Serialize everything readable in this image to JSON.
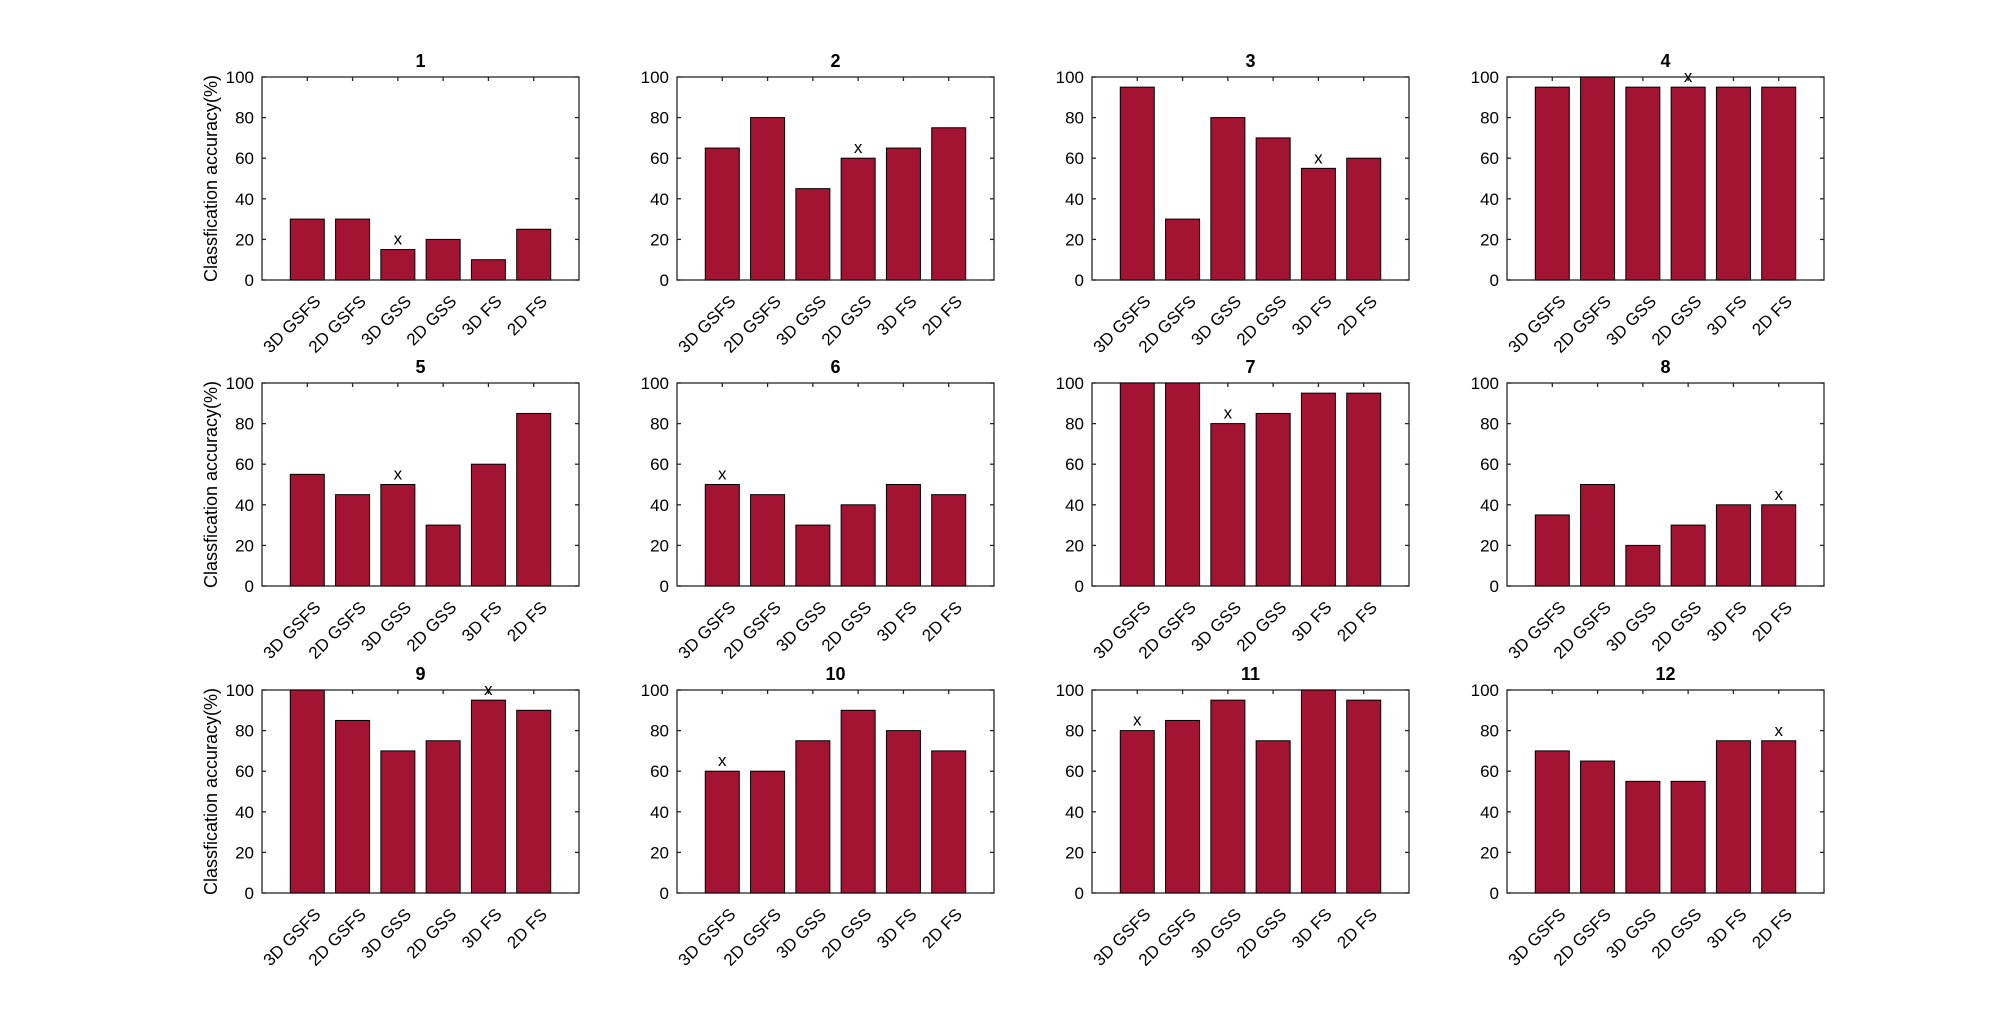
{
  "chart_data": [
    {
      "type": "bar",
      "title": "1",
      "ylabel": "Classfication accuracy(%)",
      "categories": [
        "3D GSFS",
        "2D GSFS",
        "3D GSS",
        "2D GSS",
        "3D FS",
        "2D FS"
      ],
      "values": [
        30,
        30,
        15,
        20,
        10,
        25
      ],
      "marker_label": "x",
      "marker_index": 2,
      "ylim": [
        0,
        100
      ],
      "yticks": [
        0,
        20,
        40,
        60,
        80,
        100
      ]
    },
    {
      "type": "bar",
      "title": "2",
      "ylabel": "",
      "categories": [
        "3D GSFS",
        "2D GSFS",
        "3D GSS",
        "2D GSS",
        "3D FS",
        "2D FS"
      ],
      "values": [
        65,
        80,
        45,
        60,
        65,
        75
      ],
      "marker_label": "x",
      "marker_index": 3,
      "ylim": [
        0,
        100
      ],
      "yticks": [
        0,
        20,
        40,
        60,
        80,
        100
      ]
    },
    {
      "type": "bar",
      "title": "3",
      "ylabel": "",
      "categories": [
        "3D GSFS",
        "2D GSFS",
        "3D GSS",
        "2D GSS",
        "3D FS",
        "2D FS"
      ],
      "values": [
        95,
        30,
        80,
        70,
        55,
        60
      ],
      "marker_label": "x",
      "marker_index": 4,
      "ylim": [
        0,
        100
      ],
      "yticks": [
        0,
        20,
        40,
        60,
        80,
        100
      ]
    },
    {
      "type": "bar",
      "title": "4",
      "ylabel": "",
      "categories": [
        "3D GSFS",
        "2D GSFS",
        "3D GSS",
        "2D GSS",
        "3D FS",
        "2D FS"
      ],
      "values": [
        95,
        100,
        95,
        95,
        95,
        95
      ],
      "marker_label": "x",
      "marker_index": 3,
      "ylim": [
        0,
        100
      ],
      "yticks": [
        0,
        20,
        40,
        60,
        80,
        100
      ]
    },
    {
      "type": "bar",
      "title": "5",
      "ylabel": "Classfication accuracy(%)",
      "categories": [
        "3D GSFS",
        "2D GSFS",
        "3D GSS",
        "2D GSS",
        "3D FS",
        "2D FS"
      ],
      "values": [
        55,
        45,
        50,
        30,
        60,
        85
      ],
      "marker_label": "x",
      "marker_index": 2,
      "ylim": [
        0,
        100
      ],
      "yticks": [
        0,
        20,
        40,
        60,
        80,
        100
      ]
    },
    {
      "type": "bar",
      "title": "6",
      "ylabel": "",
      "categories": [
        "3D GSFS",
        "2D GSFS",
        "3D GSS",
        "2D GSS",
        "3D FS",
        "2D FS"
      ],
      "values": [
        50,
        45,
        30,
        40,
        50,
        45
      ],
      "marker_label": "x",
      "marker_index": 0,
      "ylim": [
        0,
        100
      ],
      "yticks": [
        0,
        20,
        40,
        60,
        80,
        100
      ]
    },
    {
      "type": "bar",
      "title": "7",
      "ylabel": "",
      "categories": [
        "3D GSFS",
        "2D GSFS",
        "3D GSS",
        "2D GSS",
        "3D FS",
        "2D FS"
      ],
      "values": [
        100,
        100,
        80,
        85,
        95,
        95
      ],
      "marker_label": "x",
      "marker_index": 2,
      "ylim": [
        0,
        100
      ],
      "yticks": [
        0,
        20,
        40,
        60,
        80,
        100
      ]
    },
    {
      "type": "bar",
      "title": "8",
      "ylabel": "",
      "categories": [
        "3D GSFS",
        "2D GSFS",
        "3D GSS",
        "2D GSS",
        "3D FS",
        "2D FS"
      ],
      "values": [
        35,
        50,
        20,
        30,
        40,
        40
      ],
      "marker_label": "x",
      "marker_index": 5,
      "ylim": [
        0,
        100
      ],
      "yticks": [
        0,
        20,
        40,
        60,
        80,
        100
      ]
    },
    {
      "type": "bar",
      "title": "9",
      "ylabel": "Classfication accuracy(%)",
      "categories": [
        "3D GSFS",
        "2D GSFS",
        "3D GSS",
        "2D GSS",
        "3D FS",
        "2D FS"
      ],
      "values": [
        100,
        85,
        70,
        75,
        95,
        90
      ],
      "marker_label": "x",
      "marker_index": 4,
      "ylim": [
        0,
        100
      ],
      "yticks": [
        0,
        20,
        40,
        60,
        80,
        100
      ]
    },
    {
      "type": "bar",
      "title": "10",
      "ylabel": "",
      "categories": [
        "3D GSFS",
        "2D GSFS",
        "3D GSS",
        "2D GSS",
        "3D FS",
        "2D FS"
      ],
      "values": [
        60,
        60,
        75,
        90,
        80,
        70
      ],
      "marker_label": "x",
      "marker_index": 0,
      "ylim": [
        0,
        100
      ],
      "yticks": [
        0,
        20,
        40,
        60,
        80,
        100
      ]
    },
    {
      "type": "bar",
      "title": "11",
      "ylabel": "",
      "categories": [
        "3D GSFS",
        "2D GSFS",
        "3D GSS",
        "2D GSS",
        "3D FS",
        "2D FS"
      ],
      "values": [
        80,
        85,
        95,
        75,
        100,
        95
      ],
      "marker_label": "x",
      "marker_index": 0,
      "ylim": [
        0,
        100
      ],
      "yticks": [
        0,
        20,
        40,
        60,
        80,
        100
      ]
    },
    {
      "type": "bar",
      "title": "12",
      "ylabel": "",
      "categories": [
        "3D GSFS",
        "2D GSFS",
        "3D GSS",
        "2D GSS",
        "3D FS",
        "2D FS"
      ],
      "values": [
        70,
        65,
        55,
        55,
        75,
        75
      ],
      "marker_label": "x",
      "marker_index": 5,
      "ylim": [
        0,
        100
      ],
      "yticks": [
        0,
        20,
        40,
        60,
        80,
        100
      ]
    }
  ],
  "colors": {
    "bar_fill": "#A31432",
    "bar_edge": "#000000",
    "axis": "#262626"
  }
}
